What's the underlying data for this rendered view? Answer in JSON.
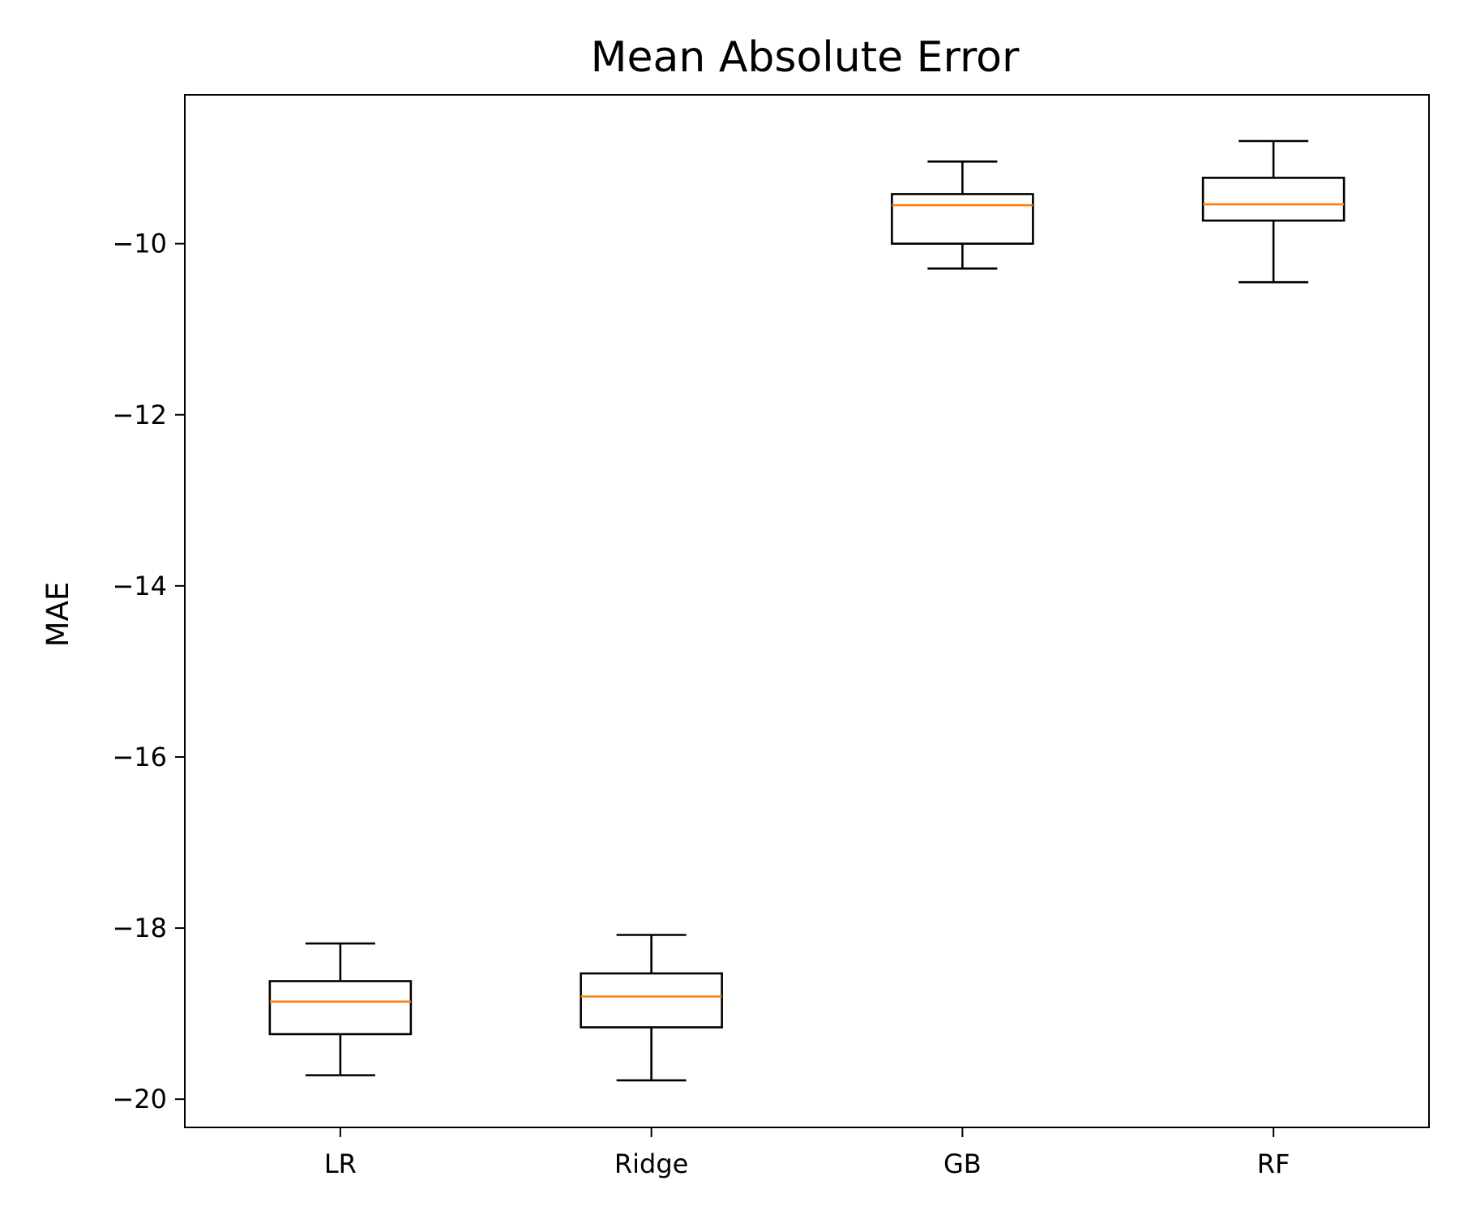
{
  "chart_data": {
    "type": "box",
    "title": "Mean Absolute Error",
    "xlabel": "",
    "ylabel": "MAE",
    "categories": [
      "LR",
      "Ridge",
      "GB",
      "RF"
    ],
    "boxes": [
      {
        "name": "LR",
        "whisker_low": -19.72,
        "q1": -19.24,
        "median": -18.86,
        "q3": -18.62,
        "whisker_high": -18.18
      },
      {
        "name": "Ridge",
        "whisker_low": -19.78,
        "q1": -19.16,
        "median": -18.8,
        "q3": -18.53,
        "whisker_high": -18.08
      },
      {
        "name": "GB",
        "whisker_low": -10.29,
        "q1": -10.0,
        "median": -9.55,
        "q3": -9.42,
        "whisker_high": -9.04
      },
      {
        "name": "RF",
        "whisker_low": -10.45,
        "q1": -9.73,
        "median": -9.54,
        "q3": -9.23,
        "whisker_high": -8.8
      }
    ],
    "yticks": [
      -20,
      -18,
      -16,
      -14,
      -12,
      -10
    ],
    "ytick_labels": [
      "−20",
      "−18",
      "−16",
      "−14",
      "−12",
      "−10"
    ],
    "ylim": [
      -20.33,
      -8.26
    ],
    "grid": false,
    "colors": {
      "box": "#000000",
      "median": "#ff7f0e"
    }
  }
}
